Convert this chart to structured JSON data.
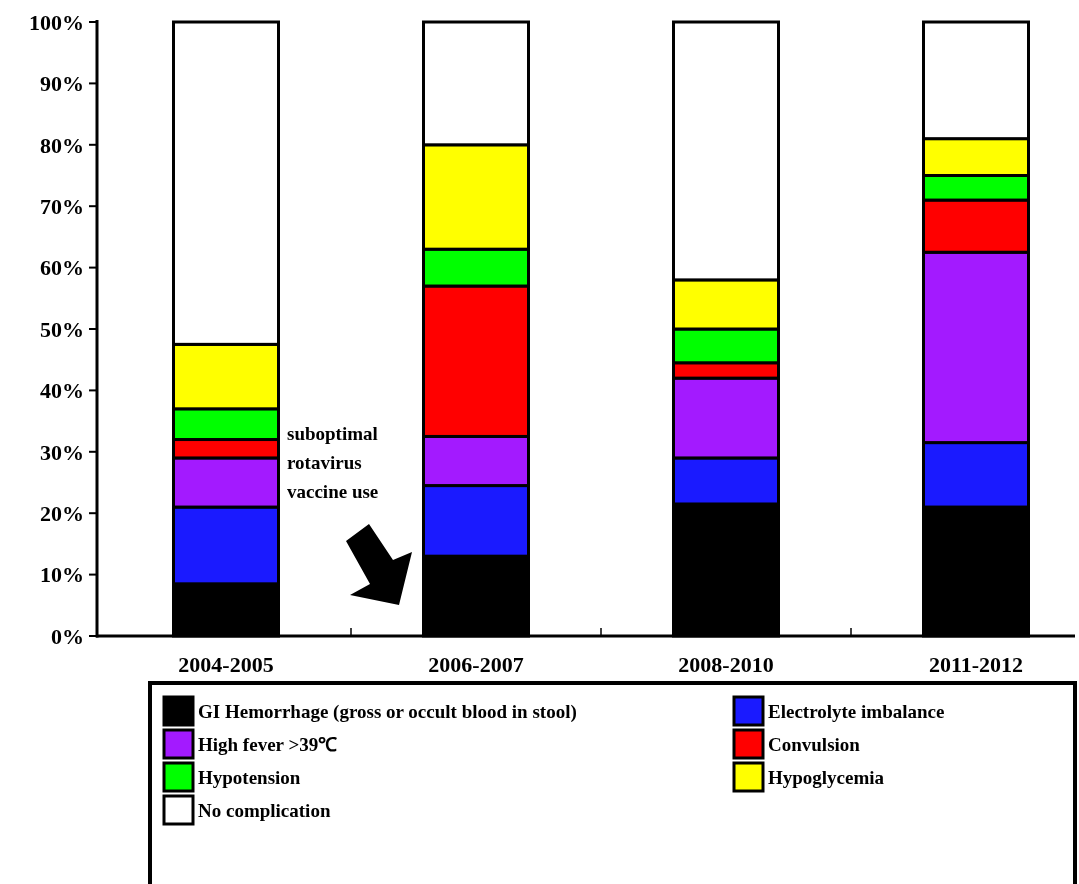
{
  "chart_data": {
    "type": "bar",
    "stacked": true,
    "categories": [
      "2004-2005",
      "2006-2007",
      "2008-2010",
      "2011-2012"
    ],
    "series": [
      {
        "name": "GI Hemorrhage (gross or occult blood in stool)",
        "color": "#000000",
        "values": [
          8.5,
          13,
          21.5,
          21
        ]
      },
      {
        "name": "Electrolyte imbalance",
        "color": "#1a1aff",
        "values": [
          12.5,
          11.5,
          7.5,
          10.5
        ]
      },
      {
        "name": "High fever >39℃",
        "color": "#a31aff",
        "values": [
          8,
          8,
          13,
          31
        ]
      },
      {
        "name": "Convulsion",
        "color": "#ff0000",
        "values": [
          3,
          24.5,
          2.5,
          8.5
        ]
      },
      {
        "name": "Hypotension",
        "color": "#00ff00",
        "values": [
          5,
          6,
          5.5,
          4
        ]
      },
      {
        "name": "Hypoglycemia",
        "color": "#ffff00",
        "values": [
          10.5,
          17,
          8,
          6
        ]
      },
      {
        "name": "No complication",
        "color": "#ffffff",
        "values": [
          52.5,
          20,
          42,
          19
        ]
      }
    ],
    "ylim": [
      0,
      100
    ],
    "yticks": [
      {
        "value": 0,
        "label": "0%"
      },
      {
        "value": 10,
        "label": "10%"
      },
      {
        "value": 20,
        "label": "20%"
      },
      {
        "value": 30,
        "label": "30%"
      },
      {
        "value": 40,
        "label": "40%"
      },
      {
        "value": 50,
        "label": "50%"
      },
      {
        "value": 60,
        "label": "60%"
      },
      {
        "value": 70,
        "label": "70%"
      },
      {
        "value": 80,
        "label": "80%"
      },
      {
        "value": 90,
        "label": "90%"
      },
      {
        "value": 100,
        "label": "100%"
      }
    ],
    "legend": "bottom",
    "annotations": [
      "suboptimal rotavirus vaccine use"
    ]
  }
}
